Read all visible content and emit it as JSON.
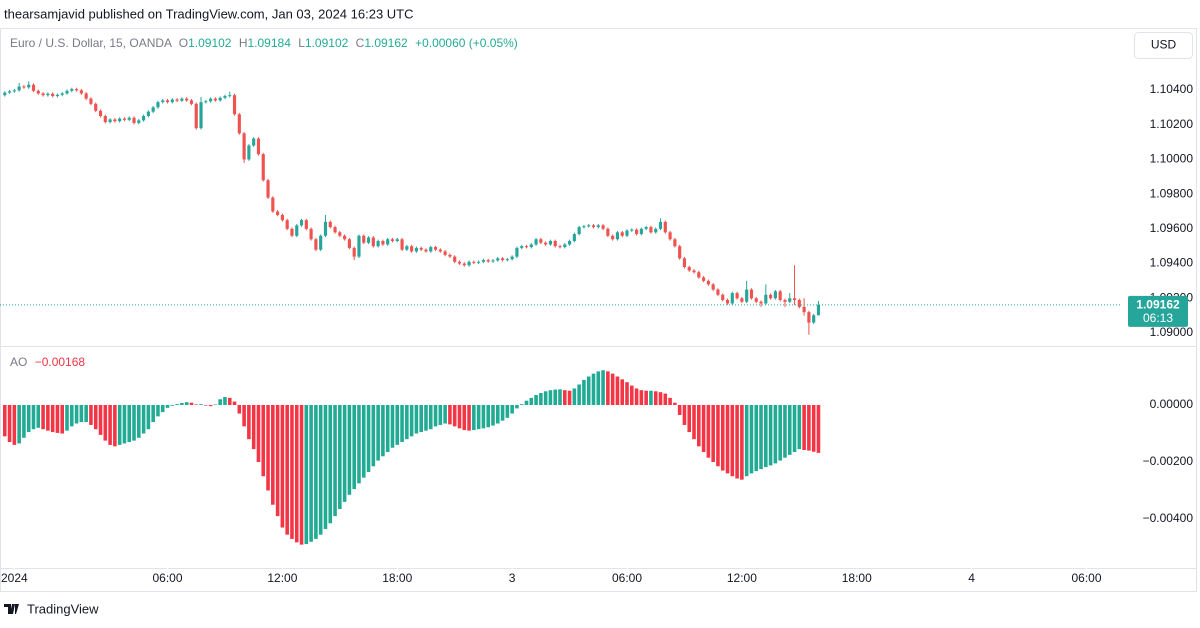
{
  "header": "thearsamjavid published on TradingView.com, Jan 03, 2024 16:23 UTC",
  "currency": "USD",
  "footer": "TradingView",
  "chart_data": [
    {
      "type": "candlestick",
      "title": "Euro / U.S. Dollar, 15, OANDA",
      "ohlc_letters": [
        "O",
        "H",
        "L",
        "C"
      ],
      "change_label": "+0.00060 (+0.05%)",
      "countdown": "06:13",
      "up_color": "#26a69a",
      "down_color": "#ef5350",
      "xlim": [
        -1,
        233
      ],
      "ylim": [
        1.08925,
        1.10757
      ],
      "yticks": [
        {
          "value": 1.09,
          "label": "1.09000"
        },
        {
          "value": 1.092,
          "label": "1.09200"
        },
        {
          "value": 1.094,
          "label": "1.09400"
        },
        {
          "value": 1.096,
          "label": "1.09600"
        },
        {
          "value": 1.098,
          "label": "1.09800"
        },
        {
          "value": 1.1,
          "label": "1.10000"
        },
        {
          "value": 1.102,
          "label": "1.10200"
        },
        {
          "value": 1.104,
          "label": "1.10400"
        }
      ],
      "open": [
        1.1037,
        1.10385,
        1.10392,
        1.10398,
        1.1042,
        1.10415,
        1.1043,
        1.10395,
        1.1038,
        1.1037,
        1.10378,
        1.10365,
        1.10372,
        1.1038,
        1.10395,
        1.10405,
        1.10398,
        1.1038,
        1.1035,
        1.1032,
        1.1028,
        1.1025,
        1.10215,
        1.1023,
        1.1022,
        1.10235,
        1.10228,
        1.1024,
        1.1021,
        1.10225,
        1.1025,
        1.10275,
        1.103,
        1.1033,
        1.1034,
        1.1033,
        1.10345,
        1.10338,
        1.1035,
        1.1034,
        1.1032,
        1.1018,
        1.1033,
        1.10335,
        1.1035,
        1.1034,
        1.10355,
        1.10365,
        1.1037,
        1.1026,
        1.1015,
        1.1,
        1.1008,
        1.1012,
        1.1003,
        1.0988,
        1.0978,
        1.097,
        1.0968,
        1.0965,
        1.096,
        1.0956,
        1.0962,
        1.0965,
        1.096,
        1.0954,
        1.0948,
        1.0956,
        1.0964,
        1.0961,
        1.0958,
        1.0956,
        1.0954,
        1.0949,
        1.0944,
        1.0956,
        1.0952,
        1.0955,
        1.095,
        1.0953,
        1.0951,
        1.0954,
        1.0953,
        1.0954,
        1.0948,
        1.095,
        1.0947,
        1.0949,
        1.0948,
        1.0947,
        1.09495,
        1.0948,
        1.0947,
        1.0945,
        1.0944,
        1.0941,
        1.094,
        1.0939,
        1.0941,
        1.09405,
        1.0941,
        1.0942,
        1.09412,
        1.09418,
        1.0943,
        1.0942,
        1.09425,
        1.0944,
        1.0949,
        1.095,
        1.09495,
        1.0951,
        1.0954,
        1.0952,
        1.0951,
        1.0953,
        1.095,
        1.09495,
        1.0951,
        1.0953,
        1.0957,
        1.0961,
        1.09615,
        1.0962,
        1.0961,
        1.0962,
        1.096,
        1.0956,
        1.0954,
        1.0958,
        1.0956,
        1.0959,
        1.09595,
        1.0957,
        1.096,
        1.0961,
        1.0958,
        1.096,
        1.0964,
        1.0958,
        1.0954,
        1.095,
        1.0943,
        1.0938,
        1.0936,
        1.0935,
        1.0932,
        1.093,
        1.0928,
        1.0925,
        1.0922,
        1.0919,
        1.0917,
        1.0923,
        1.092,
        1.0918,
        1.0925,
        1.092,
        1.0918,
        1.0917,
        1.0922,
        1.092,
        1.0924,
        1.0919,
        1.0918,
        1.092,
        1.0919,
        1.0915,
        1.0912,
        1.0906,
        1.09102
      ],
      "high": [
        1.10393,
        1.104,
        1.10406,
        1.1044,
        1.10428,
        1.1045,
        1.10438,
        1.10403,
        1.10388,
        1.10386,
        1.10386,
        1.1038,
        1.10388,
        1.10403,
        1.10413,
        1.10413,
        1.10406,
        1.10388,
        1.10358,
        1.10328,
        1.10288,
        1.10258,
        1.10238,
        1.10238,
        1.10243,
        1.10243,
        1.10248,
        1.10248,
        1.10233,
        1.10258,
        1.10283,
        1.10308,
        1.10338,
        1.10348,
        1.10348,
        1.10353,
        1.10353,
        1.10358,
        1.10358,
        1.10348,
        1.10328,
        1.1036,
        1.10343,
        1.10358,
        1.10358,
        1.10363,
        1.10373,
        1.1039,
        1.10378,
        1.10268,
        1.10158,
        1.10088,
        1.10128,
        1.10128,
        1.10038,
        1.09888,
        1.09788,
        1.09708,
        1.09688,
        1.09658,
        1.09608,
        1.09628,
        1.09658,
        1.09658,
        1.09608,
        1.09548,
        1.09568,
        1.0968,
        1.09648,
        1.09618,
        1.09588,
        1.09568,
        1.09548,
        1.09498,
        1.09568,
        1.09568,
        1.09558,
        1.09558,
        1.09538,
        1.09538,
        1.09548,
        1.09548,
        1.09548,
        1.09548,
        1.09508,
        1.09508,
        1.09498,
        1.09498,
        1.09488,
        1.09503,
        1.09503,
        1.09488,
        1.09478,
        1.09458,
        1.09448,
        1.09418,
        1.09408,
        1.09418,
        1.09418,
        1.09418,
        1.09428,
        1.09428,
        1.09426,
        1.09438,
        1.09438,
        1.09433,
        1.09448,
        1.09498,
        1.09508,
        1.09508,
        1.09518,
        1.09548,
        1.09548,
        1.09528,
        1.09538,
        1.09538,
        1.09508,
        1.09518,
        1.09538,
        1.09578,
        1.09618,
        1.09623,
        1.09628,
        1.09628,
        1.09628,
        1.09628,
        1.09608,
        1.09568,
        1.09588,
        1.09588,
        1.09598,
        1.09603,
        1.09603,
        1.09608,
        1.09618,
        1.09618,
        1.09608,
        1.0966,
        1.09648,
        1.09588,
        1.09548,
        1.09508,
        1.09438,
        1.09388,
        1.09368,
        1.09358,
        1.09328,
        1.09308,
        1.09288,
        1.09258,
        1.09228,
        1.09198,
        1.09238,
        1.09238,
        1.09208,
        1.093,
        1.09258,
        1.09208,
        1.09188,
        1.0928,
        1.09228,
        1.09248,
        1.09248,
        1.09198,
        1.0923,
        1.0939,
        1.09198,
        1.092,
        1.09128,
        1.0911,
        1.09184
      ],
      "low": [
        1.10362,
        1.10377,
        1.10384,
        1.1039,
        1.10407,
        1.10407,
        1.10387,
        1.10372,
        1.10362,
        1.10362,
        1.10357,
        1.10357,
        1.10364,
        1.10372,
        1.10387,
        1.1039,
        1.10372,
        1.10342,
        1.10312,
        1.10272,
        1.10242,
        1.10207,
        1.10207,
        1.10212,
        1.10212,
        1.1022,
        1.1022,
        1.10202,
        1.10202,
        1.10217,
        1.10242,
        1.10267,
        1.10292,
        1.10322,
        1.10322,
        1.10322,
        1.1033,
        1.1033,
        1.10332,
        1.10312,
        1.10172,
        1.10172,
        1.10322,
        1.10327,
        1.10332,
        1.10332,
        1.10347,
        1.10357,
        1.10252,
        1.10142,
        1.0998,
        1.09992,
        1.10072,
        1.10022,
        1.09872,
        1.09772,
        1.09692,
        1.09672,
        1.09642,
        1.09592,
        1.09552,
        1.09552,
        1.09612,
        1.09592,
        1.09532,
        1.09472,
        1.09472,
        1.09552,
        1.09602,
        1.09572,
        1.09552,
        1.09532,
        1.09482,
        1.0942,
        1.09432,
        1.09512,
        1.09512,
        1.09492,
        1.09492,
        1.09502,
        1.09502,
        1.09522,
        1.09522,
        1.09472,
        1.09472,
        1.09462,
        1.09462,
        1.09472,
        1.09462,
        1.09462,
        1.09472,
        1.09462,
        1.09442,
        1.09432,
        1.09402,
        1.09392,
        1.09382,
        1.09382,
        1.09397,
        1.09397,
        1.09402,
        1.09404,
        1.09404,
        1.0941,
        1.09412,
        1.09412,
        1.09417,
        1.09432,
        1.09482,
        1.09487,
        1.09487,
        1.09502,
        1.09512,
        1.09502,
        1.09502,
        1.09492,
        1.09487,
        1.09487,
        1.09502,
        1.09522,
        1.09562,
        1.09602,
        1.09607,
        1.09602,
        1.09602,
        1.09592,
        1.09552,
        1.09532,
        1.09532,
        1.09552,
        1.09552,
        1.09582,
        1.09562,
        1.09562,
        1.09592,
        1.09572,
        1.09572,
        1.09592,
        1.09572,
        1.09532,
        1.09492,
        1.09422,
        1.09372,
        1.09352,
        1.09342,
        1.09312,
        1.09292,
        1.09272,
        1.09242,
        1.09212,
        1.09182,
        1.09162,
        1.09162,
        1.09192,
        1.09172,
        1.09172,
        1.09192,
        1.09172,
        1.0915,
        1.09162,
        1.09192,
        1.09192,
        1.09182,
        1.0915,
        1.09172,
        1.0916,
        1.09142,
        1.091,
        1.0899,
        1.09052,
        1.09102
      ],
      "close": [
        1.10385,
        1.10392,
        1.10398,
        1.1042,
        1.10415,
        1.1043,
        1.10395,
        1.1038,
        1.1037,
        1.10378,
        1.10365,
        1.10372,
        1.1038,
        1.10395,
        1.10405,
        1.10398,
        1.1038,
        1.1035,
        1.1032,
        1.1028,
        1.1025,
        1.10215,
        1.1023,
        1.1022,
        1.10235,
        1.10228,
        1.1024,
        1.1021,
        1.10225,
        1.1025,
        1.10275,
        1.103,
        1.1033,
        1.1034,
        1.1033,
        1.10345,
        1.10338,
        1.1035,
        1.1034,
        1.1032,
        1.1018,
        1.1033,
        1.10335,
        1.1035,
        1.1034,
        1.10355,
        1.10365,
        1.1037,
        1.1026,
        1.1015,
        1.1,
        1.1008,
        1.1012,
        1.1003,
        1.0988,
        1.0978,
        1.097,
        1.0968,
        1.0965,
        1.096,
        1.0956,
        1.0962,
        1.0965,
        1.096,
        1.0954,
        1.0948,
        1.0956,
        1.0964,
        1.0961,
        1.0958,
        1.0956,
        1.0954,
        1.0949,
        1.0944,
        1.0956,
        1.0952,
        1.0955,
        1.095,
        1.0953,
        1.0951,
        1.0954,
        1.0953,
        1.0954,
        1.0948,
        1.095,
        1.0947,
        1.0949,
        1.0948,
        1.0947,
        1.09495,
        1.0948,
        1.0947,
        1.0945,
        1.0944,
        1.0941,
        1.094,
        1.0939,
        1.0941,
        1.09405,
        1.0941,
        1.0942,
        1.09412,
        1.09418,
        1.0943,
        1.0942,
        1.09425,
        1.0944,
        1.0949,
        1.095,
        1.09495,
        1.0951,
        1.0954,
        1.0952,
        1.0951,
        1.0953,
        1.095,
        1.09495,
        1.0951,
        1.0953,
        1.0957,
        1.0961,
        1.09615,
        1.0962,
        1.0961,
        1.0962,
        1.096,
        1.0956,
        1.0954,
        1.0958,
        1.0956,
        1.0959,
        1.09595,
        1.0957,
        1.096,
        1.0961,
        1.0958,
        1.096,
        1.0964,
        1.0958,
        1.0954,
        1.095,
        1.0943,
        1.0938,
        1.0936,
        1.0935,
        1.0932,
        1.093,
        1.0928,
        1.0925,
        1.0922,
        1.0919,
        1.0917,
        1.0923,
        1.092,
        1.0918,
        1.0925,
        1.092,
        1.0918,
        1.0917,
        1.0922,
        1.092,
        1.0924,
        1.0919,
        1.0918,
        1.092,
        1.0919,
        1.0915,
        1.0912,
        1.0906,
        1.09102,
        1.09162
      ]
    },
    {
      "type": "bar",
      "title": "AO",
      "value_label": "−0.00168",
      "up_color": "#22ab94",
      "down_color": "#f23645",
      "xlim": [
        -1,
        233
      ],
      "ylim": [
        -0.00572,
        0.00207
      ],
      "yticks": [
        {
          "value": 0,
          "label": "0.00000"
        },
        {
          "value": -0.002,
          "label": "−0.00200"
        },
        {
          "value": -0.004,
          "label": "−0.00400"
        }
      ],
      "xticks": [
        {
          "value": 2,
          "label": "2024"
        },
        {
          "value": 34,
          "label": "06:00"
        },
        {
          "value": 58,
          "label": "12:00"
        },
        {
          "value": 82,
          "label": "18:00"
        },
        {
          "value": 106,
          "label": "3"
        },
        {
          "value": 130,
          "label": "06:00"
        },
        {
          "value": 154,
          "label": "12:00"
        },
        {
          "value": 178,
          "label": "18:00"
        },
        {
          "value": 202,
          "label": "4"
        },
        {
          "value": 226,
          "label": "06:00"
        }
      ],
      "values": [
        -0.0011,
        -0.0013,
        -0.0014,
        -0.00135,
        -0.00115,
        -0.00095,
        -0.00085,
        -0.0008,
        -0.00085,
        -0.0009,
        -0.00095,
        -0.00098,
        -0.001,
        -0.0009,
        -0.00075,
        -0.00065,
        -0.0006,
        -0.0006,
        -0.0007,
        -0.00085,
        -0.00105,
        -0.00125,
        -0.0014,
        -0.00145,
        -0.0014,
        -0.00135,
        -0.0013,
        -0.00125,
        -0.00115,
        -0.001,
        -0.00085,
        -0.0006,
        -0.0004,
        -0.00025,
        -0.0001,
        -3e-05,
        3e-05,
        7e-05,
        0.0001,
        8e-05,
        2e-05,
        3e-05,
        -2e-05,
        -4e-05,
        2e-05,
        0.0002,
        0.00028,
        0.00025,
        0.00012,
        -0.0003,
        -0.00075,
        -0.0012,
        -0.00155,
        -0.002,
        -0.0025,
        -0.003,
        -0.0035,
        -0.0039,
        -0.0043,
        -0.00455,
        -0.0047,
        -0.00482,
        -0.0049,
        -0.00488,
        -0.0048,
        -0.0047,
        -0.00455,
        -0.00435,
        -0.00415,
        -0.0039,
        -0.00365,
        -0.0034,
        -0.00315,
        -0.00295,
        -0.00275,
        -0.00255,
        -0.00235,
        -0.00215,
        -0.00195,
        -0.0018,
        -0.00165,
        -0.0015,
        -0.0014,
        -0.0013,
        -0.0012,
        -0.0011,
        -0.001,
        -0.00095,
        -0.0009,
        -0.00085,
        -0.00075,
        -0.0007,
        -0.00065,
        -0.00068,
        -0.00075,
        -0.00082,
        -0.00088,
        -0.0009,
        -0.00088,
        -0.00085,
        -0.00082,
        -0.00078,
        -0.00072,
        -0.00065,
        -0.00055,
        -0.00045,
        -0.0003,
        -0.00012,
        3e-05,
        0.00015,
        0.00025,
        0.00035,
        0.00042,
        0.00048,
        0.00052,
        0.00054,
        0.00055,
        0.00052,
        0.0005,
        0.00058,
        0.00072,
        0.00088,
        0.001,
        0.0011,
        0.00118,
        0.00122,
        0.00118,
        0.0011,
        0.001,
        0.0009,
        0.0008,
        0.00068,
        0.00058,
        0.00052,
        0.0005,
        0.0005,
        0.00048,
        0.00045,
        0.0004,
        0.00025,
        8e-05,
        -0.00035,
        -0.0007,
        -0.00095,
        -0.0012,
        -0.00145,
        -0.00165,
        -0.00185,
        -0.002,
        -0.00215,
        -0.0023,
        -0.0024,
        -0.0025,
        -0.00258,
        -0.00262,
        -0.0025,
        -0.0024,
        -0.00232,
        -0.00225,
        -0.00218,
        -0.00212,
        -0.00205,
        -0.00195,
        -0.00185,
        -0.00175,
        -0.00165,
        -0.00155,
        -0.00158,
        -0.0016,
        -0.00164,
        -0.00168
      ]
    }
  ]
}
